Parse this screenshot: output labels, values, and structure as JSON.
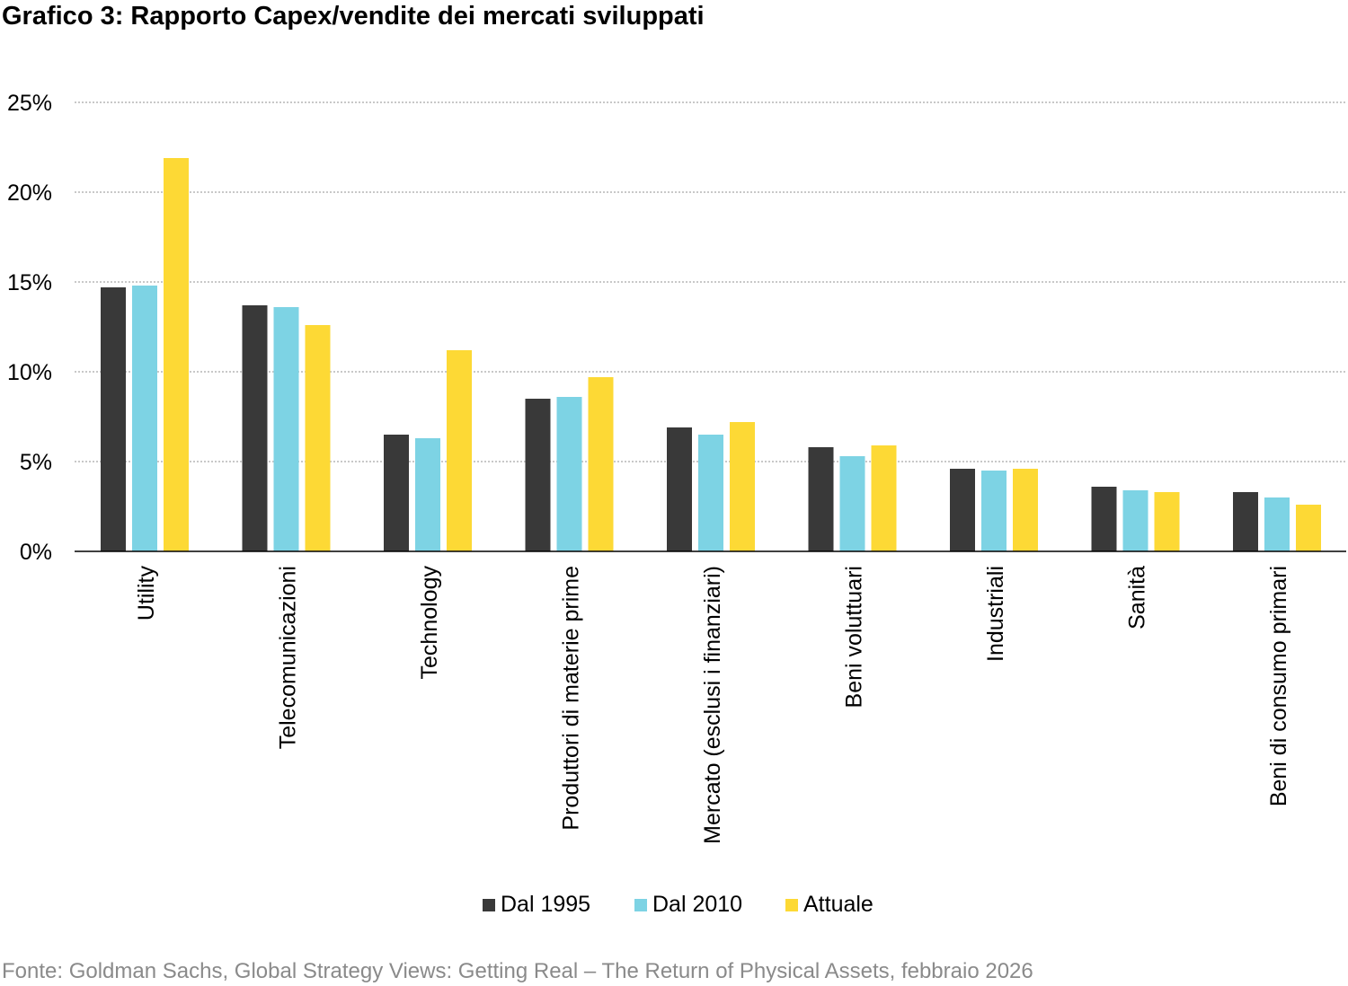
{
  "colors": {
    "series_1": "#393939",
    "series_2": "#7dd3e4",
    "series_3": "#fdd935",
    "grid": "#a6a6a6",
    "axis": "#000000",
    "source_text": "#8a8a8a"
  },
  "source": "Fonte: Goldman Sachs, Global Strategy Views: Getting Real – The Return of Physical Assets, febbraio 2026",
  "chart_data": {
    "type": "bar",
    "title": "Grafico 3: Rapporto Capex/vendite dei mercati sviluppati",
    "xlabel": "",
    "ylabel": "",
    "ylim": [
      0,
      25
    ],
    "yticks": [
      "0%",
      "5%",
      "10%",
      "15%",
      "20%",
      "25%"
    ],
    "grid": true,
    "legend_position": "bottom",
    "categories": [
      "Utility",
      "Telecomunicazioni",
      "Technology",
      "Produttori di materie prime",
      "Mercato (esclusi i finanziari)",
      "Beni voluttuari",
      "Industriali",
      "Sanità",
      "Beni di consumo primari"
    ],
    "series": [
      {
        "name": "Dal 1995",
        "values": [
          14.7,
          13.7,
          6.5,
          8.5,
          6.9,
          5.8,
          4.6,
          3.6,
          3.3
        ]
      },
      {
        "name": "Dal 2010",
        "values": [
          14.8,
          13.6,
          6.3,
          8.6,
          6.5,
          5.3,
          4.5,
          3.4,
          3.0
        ]
      },
      {
        "name": "Attuale",
        "values": [
          21.9,
          12.6,
          11.2,
          9.7,
          7.2,
          5.9,
          4.6,
          3.3,
          2.6
        ]
      }
    ]
  }
}
